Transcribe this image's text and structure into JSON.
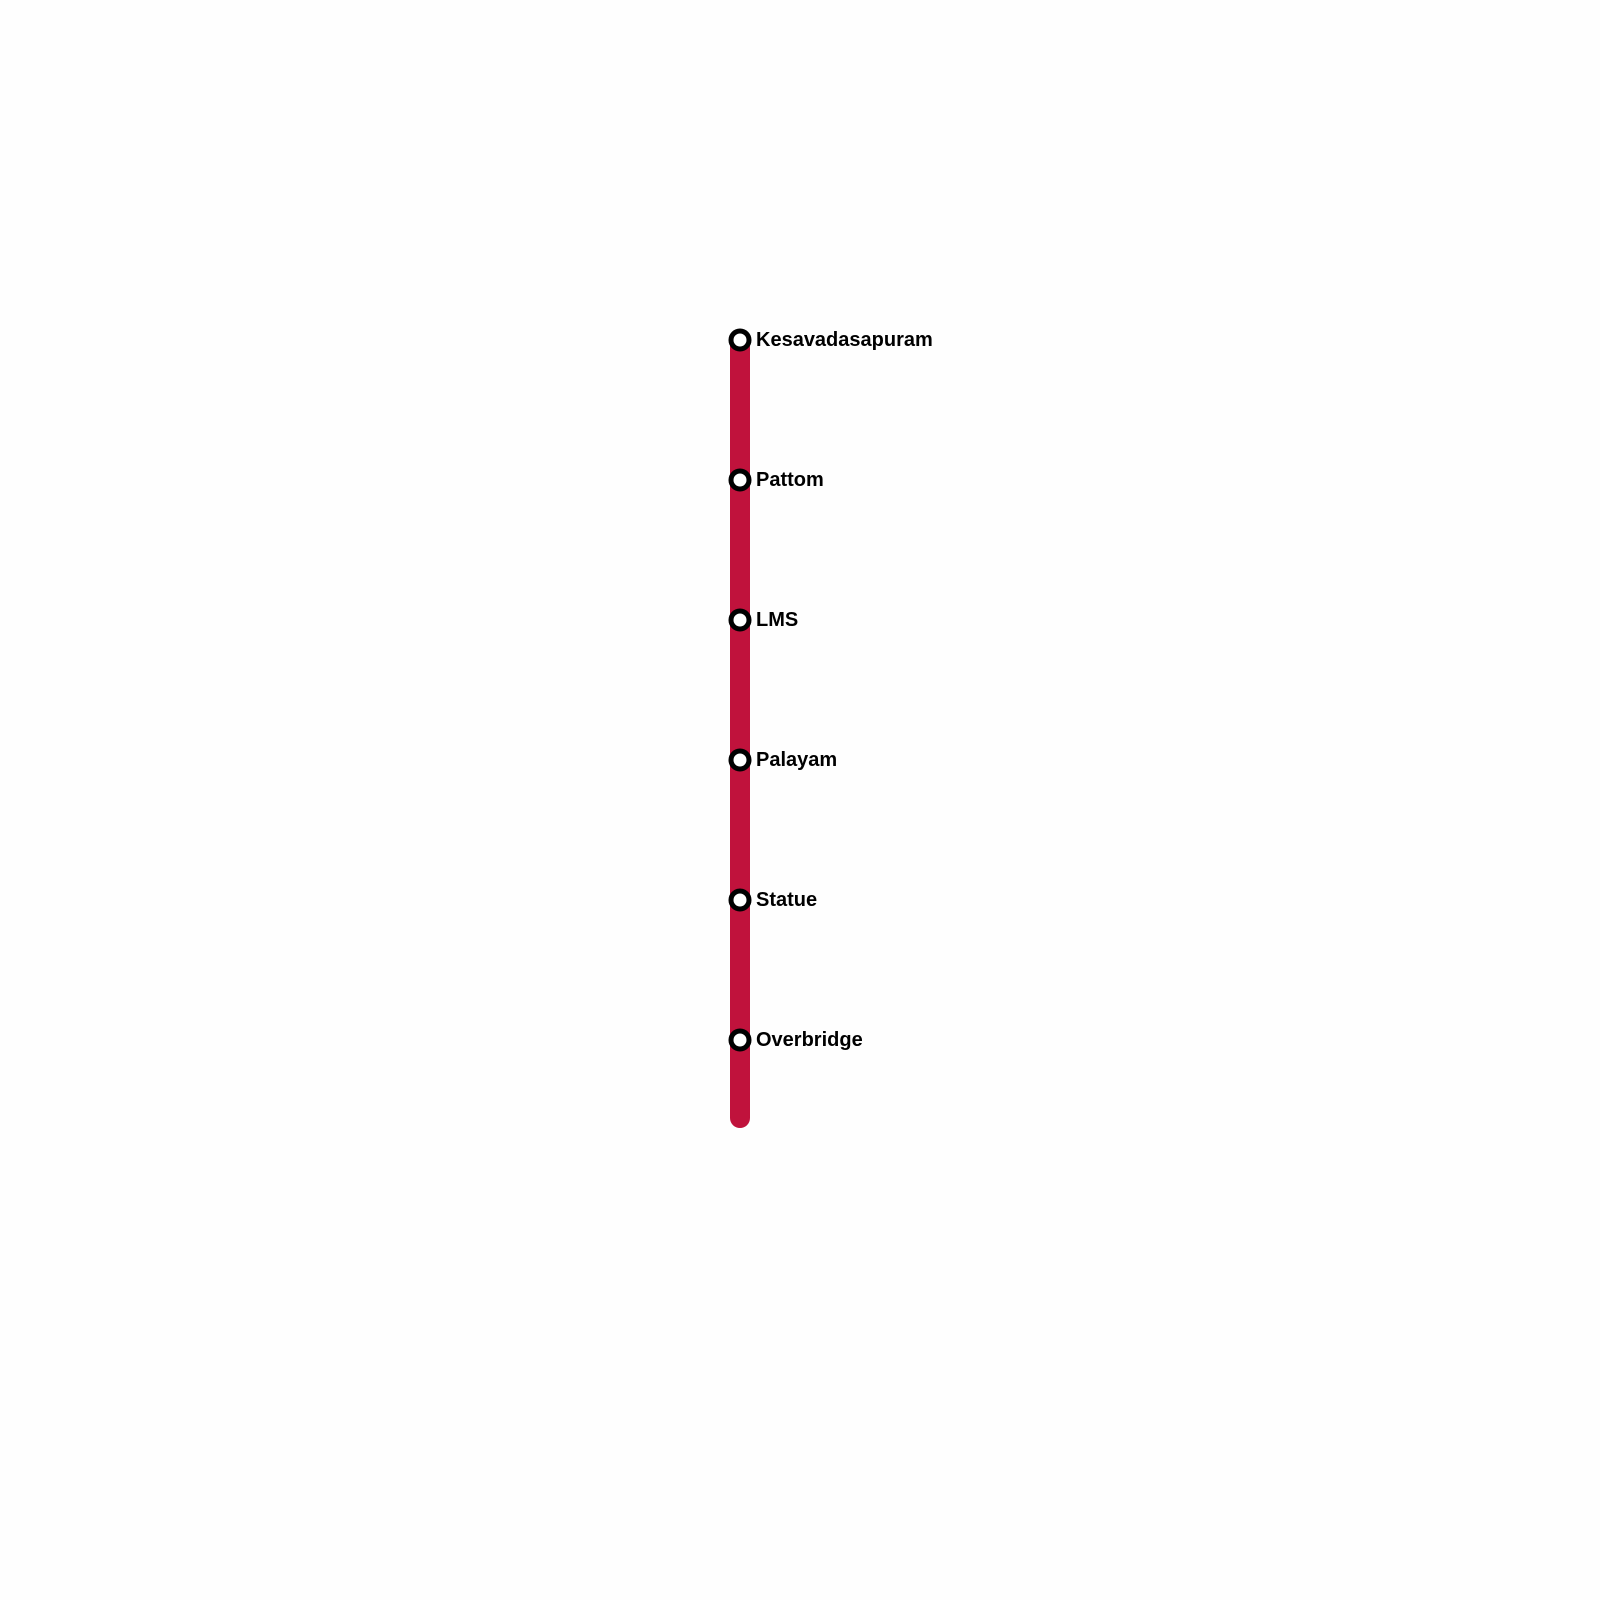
{
  "line": {
    "color": "#c0123c"
  },
  "stations": [
    {
      "name": "Kesavadasapuram"
    },
    {
      "name": "Pattom"
    },
    {
      "name": "LMS"
    },
    {
      "name": "Palayam"
    },
    {
      "name": "Statue"
    },
    {
      "name": "Overbridge"
    }
  ]
}
